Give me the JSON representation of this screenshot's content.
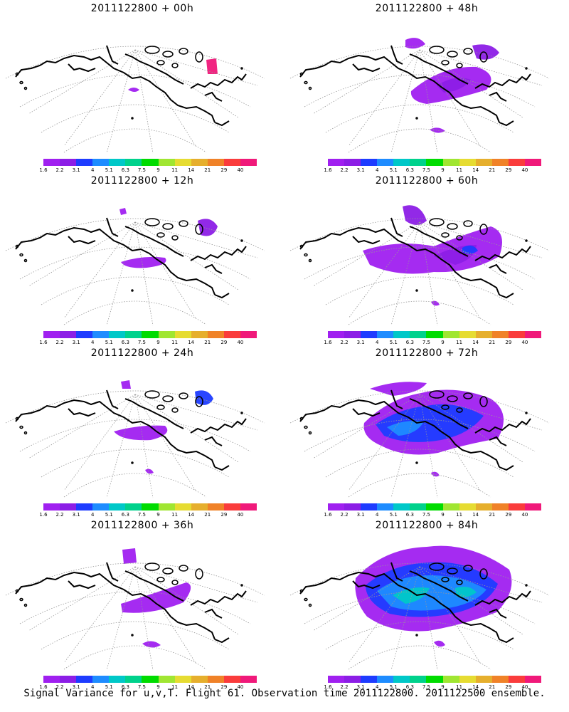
{
  "panels": [
    {
      "title": "2011122800 + 00h",
      "level": 0
    },
    {
      "title": "2011122800 + 48h",
      "level": 4
    },
    {
      "title": "2011122800 + 12h",
      "level": 1
    },
    {
      "title": "2011122800 + 60h",
      "level": 5
    },
    {
      "title": "2011122800 + 24h",
      "level": 2
    },
    {
      "title": "2011122800 + 72h",
      "level": 6
    },
    {
      "title": "2011122800 + 36h",
      "level": 3
    },
    {
      "title": "2011122800 + 84h",
      "level": 7
    }
  ],
  "colorbar": {
    "colors": [
      "#a020f0",
      "#8c1ee6",
      "#1e3cff",
      "#1e8cff",
      "#00c8c8",
      "#00d28c",
      "#00dc00",
      "#a0e632",
      "#e6dc32",
      "#e6af2d",
      "#f08228",
      "#fa3c3c",
      "#f0197a"
    ],
    "labels": [
      "1.6",
      "2.2",
      "3.1",
      "4",
      "5.1",
      "6.3",
      "7.5",
      "9",
      "11",
      "14",
      "21",
      "29",
      "40"
    ]
  },
  "footer": "Signal Variance for u,v,T. Flight 61. Observation time 2011122800. 2011122500 ensemble."
}
